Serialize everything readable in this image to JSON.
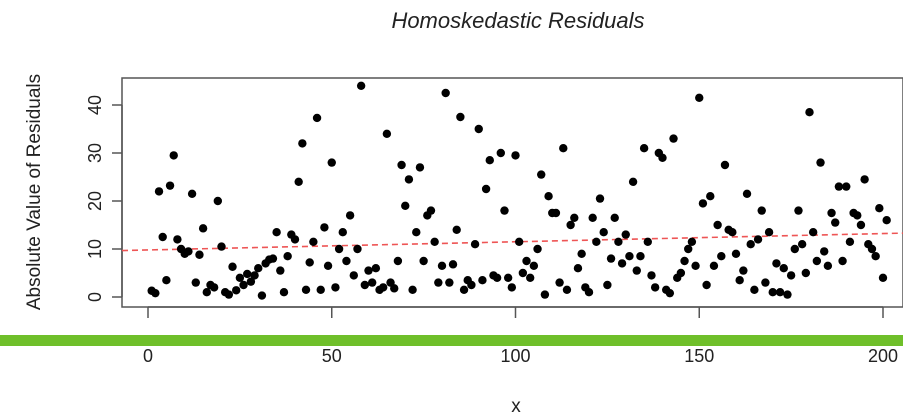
{
  "chart_data": {
    "type": "scatter",
    "title": "Homoskedastic Residuals",
    "xlabel": "x",
    "ylabel": "Absolute Value of Residuals",
    "xlim": [
      0,
      205
    ],
    "ylim": [
      -1,
      46
    ],
    "x_ticks": [
      0,
      50,
      100,
      150,
      200
    ],
    "y_ticks": [
      0,
      10,
      20,
      30,
      40
    ],
    "x_tick_labels": [
      "0",
      "50",
      "100",
      "150",
      "200"
    ],
    "y_tick_labels": [
      "0",
      "10",
      "20",
      "30",
      "40"
    ],
    "grid": false,
    "points": [
      [
        1,
        1.3
      ],
      [
        2,
        0.8
      ],
      [
        3,
        22.0
      ],
      [
        4,
        12.5
      ],
      [
        5,
        3.5
      ],
      [
        6,
        23.2
      ],
      [
        7,
        29.5
      ],
      [
        8,
        12.0
      ],
      [
        9,
        10.0
      ],
      [
        10,
        9.0
      ],
      [
        11,
        9.5
      ],
      [
        12,
        21.5
      ],
      [
        13,
        3.0
      ],
      [
        14,
        8.8
      ],
      [
        15,
        14.3
      ],
      [
        16,
        1.0
      ],
      [
        17,
        2.5
      ],
      [
        18,
        2.0
      ],
      [
        19,
        20.0
      ],
      [
        20,
        10.5
      ],
      [
        21,
        1.0
      ],
      [
        22,
        0.5
      ],
      [
        23,
        6.3
      ],
      [
        24,
        1.4
      ],
      [
        25,
        4.0
      ],
      [
        26,
        2.5
      ],
      [
        27,
        4.8
      ],
      [
        28,
        3.2
      ],
      [
        29,
        4.5
      ],
      [
        30,
        6.0
      ],
      [
        31,
        0.3
      ],
      [
        32,
        7.0
      ],
      [
        33,
        7.8
      ],
      [
        34,
        8.0
      ],
      [
        35,
        13.5
      ],
      [
        36,
        5.5
      ],
      [
        37,
        1.0
      ],
      [
        38,
        8.5
      ],
      [
        39,
        13.0
      ],
      [
        40,
        12.0
      ],
      [
        41,
        24.0
      ],
      [
        42,
        32.0
      ],
      [
        43,
        1.5
      ],
      [
        44,
        7.2
      ],
      [
        45,
        11.5
      ],
      [
        46,
        37.3
      ],
      [
        47,
        1.5
      ],
      [
        48,
        14.5
      ],
      [
        49,
        6.5
      ],
      [
        50,
        28.0
      ],
      [
        51,
        2.0
      ],
      [
        52,
        10.0
      ],
      [
        53,
        13.5
      ],
      [
        54,
        7.5
      ],
      [
        55,
        17.0
      ],
      [
        56,
        4.5
      ],
      [
        57,
        10.0
      ],
      [
        58,
        44.0
      ],
      [
        59,
        2.5
      ],
      [
        60,
        5.5
      ],
      [
        61,
        3.0
      ],
      [
        62,
        6.0
      ],
      [
        63,
        1.5
      ],
      [
        64,
        2.0
      ],
      [
        65,
        34.0
      ],
      [
        66,
        3.0
      ],
      [
        67,
        1.8
      ],
      [
        68,
        7.5
      ],
      [
        69,
        27.5
      ],
      [
        70,
        19.0
      ],
      [
        71,
        24.5
      ],
      [
        72,
        1.5
      ],
      [
        73,
        13.5
      ],
      [
        74,
        27.0
      ],
      [
        75,
        7.5
      ],
      [
        76,
        17.0
      ],
      [
        77,
        18.0
      ],
      [
        78,
        11.5
      ],
      [
        79,
        3.0
      ],
      [
        80,
        6.5
      ],
      [
        81,
        42.5
      ],
      [
        82,
        3.0
      ],
      [
        83,
        6.8
      ],
      [
        84,
        14.0
      ],
      [
        85,
        37.5
      ],
      [
        86,
        1.5
      ],
      [
        87,
        3.5
      ],
      [
        88,
        2.5
      ],
      [
        89,
        11.0
      ],
      [
        90,
        35.0
      ],
      [
        91,
        3.5
      ],
      [
        92,
        22.5
      ],
      [
        93,
        28.5
      ],
      [
        94,
        4.5
      ],
      [
        95,
        4.0
      ],
      [
        96,
        30.0
      ],
      [
        97,
        18.0
      ],
      [
        98,
        4.0
      ],
      [
        99,
        2.0
      ],
      [
        100,
        29.5
      ],
      [
        101,
        11.5
      ],
      [
        102,
        5.0
      ],
      [
        103,
        7.5
      ],
      [
        104,
        4.0
      ],
      [
        105,
        6.5
      ],
      [
        106,
        10.0
      ],
      [
        107,
        25.5
      ],
      [
        108,
        0.5
      ],
      [
        109,
        21.0
      ],
      [
        110,
        17.5
      ],
      [
        111,
        17.5
      ],
      [
        112,
        3.0
      ],
      [
        113,
        31.0
      ],
      [
        114,
        1.5
      ],
      [
        115,
        15.0
      ],
      [
        116,
        16.5
      ],
      [
        117,
        6.0
      ],
      [
        118,
        9.0
      ],
      [
        119,
        2.0
      ],
      [
        120,
        1.0
      ],
      [
        121,
        16.5
      ],
      [
        122,
        11.5
      ],
      [
        123,
        20.5
      ],
      [
        124,
        13.5
      ],
      [
        125,
        2.5
      ],
      [
        126,
        8.0
      ],
      [
        127,
        16.5
      ],
      [
        128,
        11.5
      ],
      [
        129,
        7.0
      ],
      [
        130,
        13.0
      ],
      [
        131,
        8.5
      ],
      [
        132,
        24.0
      ],
      [
        133,
        5.5
      ],
      [
        134,
        8.5
      ],
      [
        135,
        31.0
      ],
      [
        136,
        11.5
      ],
      [
        137,
        4.5
      ],
      [
        138,
        2.0
      ],
      [
        139,
        30.0
      ],
      [
        140,
        29.0
      ],
      [
        141,
        1.5
      ],
      [
        142,
        0.8
      ],
      [
        143,
        33.0
      ],
      [
        144,
        4.0
      ],
      [
        145,
        5.0
      ],
      [
        146,
        7.5
      ],
      [
        147,
        10.0
      ],
      [
        148,
        11.5
      ],
      [
        149,
        6.5
      ],
      [
        150,
        41.5
      ],
      [
        151,
        19.5
      ],
      [
        152,
        2.5
      ],
      [
        153,
        21.0
      ],
      [
        154,
        6.5
      ],
      [
        155,
        15.0
      ],
      [
        156,
        8.5
      ],
      [
        157,
        27.5
      ],
      [
        158,
        14.0
      ],
      [
        159,
        13.5
      ],
      [
        160,
        9.0
      ],
      [
        161,
        3.5
      ],
      [
        162,
        5.5
      ],
      [
        163,
        21.5
      ],
      [
        164,
        11.0
      ],
      [
        165,
        1.5
      ],
      [
        166,
        12.0
      ],
      [
        167,
        18.0
      ],
      [
        168,
        3.0
      ],
      [
        169,
        13.5
      ],
      [
        170,
        1.0
      ],
      [
        171,
        7.0
      ],
      [
        172,
        1.0
      ],
      [
        173,
        6.0
      ],
      [
        174,
        0.5
      ],
      [
        175,
        4.5
      ],
      [
        176,
        10.0
      ],
      [
        177,
        18.0
      ],
      [
        178,
        11.0
      ],
      [
        179,
        5.0
      ],
      [
        180,
        38.5
      ],
      [
        181,
        13.5
      ],
      [
        182,
        7.5
      ],
      [
        183,
        28.0
      ],
      [
        184,
        9.5
      ],
      [
        185,
        6.5
      ],
      [
        186,
        17.5
      ],
      [
        187,
        15.5
      ],
      [
        188,
        23.0
      ],
      [
        189,
        7.5
      ],
      [
        190,
        23.0
      ],
      [
        191,
        11.5
      ],
      [
        192,
        17.5
      ],
      [
        193,
        17.0
      ],
      [
        194,
        15.0
      ],
      [
        195,
        24.5
      ],
      [
        196,
        11.0
      ],
      [
        197,
        10.0
      ],
      [
        198,
        8.5
      ],
      [
        199,
        18.5
      ],
      [
        200,
        4.0
      ],
      [
        201,
        16.0
      ]
    ],
    "trend_line": {
      "x": [
        0,
        205
      ],
      "y": [
        9.8,
        13.3
      ],
      "style": "dashed",
      "color": "#ee5555"
    },
    "point_color": "#000000"
  },
  "decoration": {
    "overlay_bar_color": "#6fbf2a",
    "axis_color": "#555555"
  }
}
